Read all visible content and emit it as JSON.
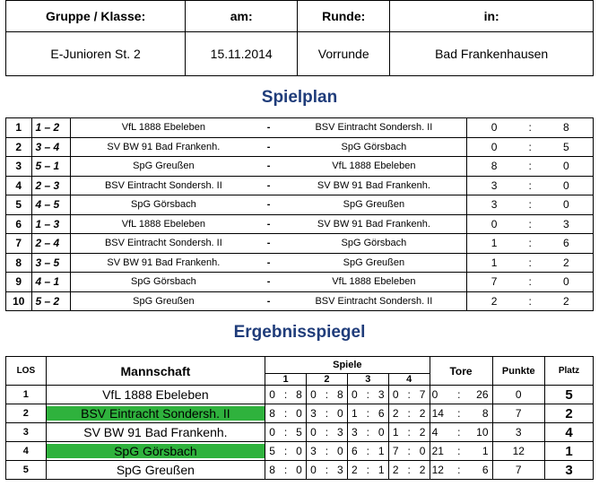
{
  "info": {
    "headers": [
      "Gruppe / Klasse:",
      "am:",
      "Runde:",
      "in:"
    ],
    "values": [
      "E-Junioren St. 2",
      "15.11.2014",
      "Vorrunde",
      "Bad Frankenhausen"
    ]
  },
  "spielplan_title": "Spielplan",
  "ergebnis_title": "Ergebnisspiegel",
  "matches": [
    {
      "no": "1",
      "pair": "1 – 2",
      "home": "VfL 1888 Ebeleben",
      "away": "BSV Eintracht Sondersh. II",
      "h": "0",
      "g": "8"
    },
    {
      "no": "2",
      "pair": "3 – 4",
      "home": "SV BW 91 Bad Frankenh.",
      "away": "SpG Görsbach",
      "h": "0",
      "g": "5"
    },
    {
      "no": "3",
      "pair": "5 – 1",
      "home": "SpG Greußen",
      "away": "VfL 1888 Ebeleben",
      "h": "8",
      "g": "0"
    },
    {
      "no": "4",
      "pair": "2 – 3",
      "home": "BSV Eintracht Sondersh. II",
      "away": "SV BW 91 Bad Frankenh.",
      "h": "3",
      "g": "0"
    },
    {
      "no": "5",
      "pair": "4 – 5",
      "home": "SpG Görsbach",
      "away": "SpG Greußen",
      "h": "3",
      "g": "0"
    },
    {
      "no": "6",
      "pair": "1 – 3",
      "home": "VfL 1888 Ebeleben",
      "away": "SV BW 91 Bad Frankenh.",
      "h": "0",
      "g": "3"
    },
    {
      "no": "7",
      "pair": "2 – 4",
      "home": "BSV Eintracht Sondersh. II",
      "away": "SpG Görsbach",
      "h": "1",
      "g": "6"
    },
    {
      "no": "8",
      "pair": "3 – 5",
      "home": "SV BW 91 Bad Frankenh.",
      "away": "SpG Greußen",
      "h": "1",
      "g": "2"
    },
    {
      "no": "9",
      "pair": "4 – 1",
      "home": "SpG Görsbach",
      "away": "VfL 1888 Ebeleben",
      "h": "7",
      "g": "0"
    },
    {
      "no": "10",
      "pair": "5 – 2",
      "home": "SpG Greußen",
      "away": "BSV Eintracht Sondersh. II",
      "h": "2",
      "g": "2"
    }
  ],
  "dash": "-",
  "colon": ":",
  "results_header": {
    "los": "LOS",
    "team": "Mannschaft",
    "spiele": "Spiele",
    "games": [
      "1",
      "2",
      "3",
      "4"
    ],
    "tore": "Tore",
    "punkte": "Punkte",
    "platz": "Platz"
  },
  "highlight_color": "#2fb23d",
  "results": [
    {
      "los": "1",
      "team": "VfL 1888 Ebeleben",
      "hl": false,
      "g": [
        [
          "0",
          "8"
        ],
        [
          "0",
          "8"
        ],
        [
          "0",
          "3"
        ],
        [
          "0",
          "7"
        ]
      ],
      "tore": [
        "0",
        "26"
      ],
      "pkt": "0",
      "platz": "5"
    },
    {
      "los": "2",
      "team": "BSV Eintracht Sondersh. II",
      "hl": true,
      "g": [
        [
          "8",
          "0"
        ],
        [
          "3",
          "0"
        ],
        [
          "1",
          "6"
        ],
        [
          "2",
          "2"
        ]
      ],
      "tore": [
        "14",
        "8"
      ],
      "pkt": "7",
      "platz": "2"
    },
    {
      "los": "3",
      "team": "SV BW 91 Bad Frankenh.",
      "hl": false,
      "g": [
        [
          "0",
          "5"
        ],
        [
          "0",
          "3"
        ],
        [
          "3",
          "0"
        ],
        [
          "1",
          "2"
        ]
      ],
      "tore": [
        "4",
        "10"
      ],
      "pkt": "3",
      "platz": "4"
    },
    {
      "los": "4",
      "team": "SpG Görsbach",
      "hl": true,
      "g": [
        [
          "5",
          "0"
        ],
        [
          "3",
          "0"
        ],
        [
          "6",
          "1"
        ],
        [
          "7",
          "0"
        ]
      ],
      "tore": [
        "21",
        "1"
      ],
      "pkt": "12",
      "platz": "1"
    },
    {
      "los": "5",
      "team": "SpG Greußen",
      "hl": false,
      "g": [
        [
          "8",
          "0"
        ],
        [
          "0",
          "3"
        ],
        [
          "2",
          "1"
        ],
        [
          "2",
          "2"
        ]
      ],
      "tore": [
        "12",
        "6"
      ],
      "pkt": "7",
      "platz": "3"
    }
  ]
}
